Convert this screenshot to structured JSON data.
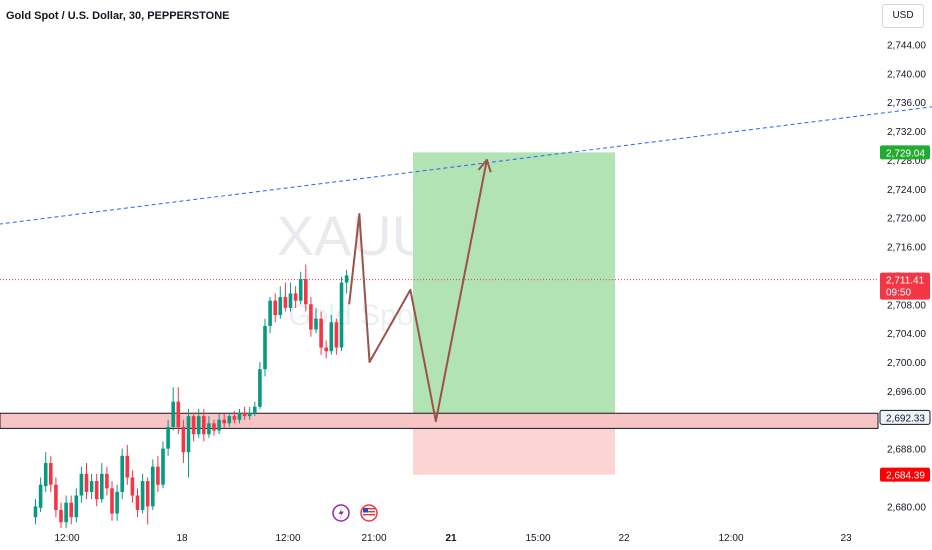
{
  "header": {
    "title": "Gold Spot / U.S. Dollar, 30, PEPPERSTONE",
    "currency": "USD"
  },
  "watermark": {
    "symbol": "XAUUSD, 30",
    "name": "Gold Spot / U.S. Dollar"
  },
  "colors": {
    "up": "#089981",
    "down": "#f23645",
    "long_target": "#b2e3b4",
    "long_stop": "#fdd4d4",
    "arrow": "#9b5248",
    "trendline": "#2962ff",
    "target_label": "#22ab30"
  },
  "chart_data": {
    "type": "candlestick",
    "title": "Gold Spot / U.S. Dollar, 30, PEPPERSTONE",
    "ylim": [
      2677,
      2746
    ],
    "y_ticks": [
      "2,680.00",
      "2,684.00",
      "2,688.00",
      "2,692.00",
      "2,696.00",
      "2,700.00",
      "2,704.00",
      "2,708.00",
      "2,712.00",
      "2,716.00",
      "2,720.00",
      "2,724.00",
      "2,728.00",
      "2,732.00",
      "2,736.00",
      "2,740.00",
      "2,744.00"
    ],
    "x_ticks": [
      "12:00",
      "18",
      "12:00",
      "21:00",
      "21",
      "15:00",
      "22",
      "12:00",
      "23"
    ],
    "candles": [
      [
        2678.5,
        2680.0,
        2677.5,
        2681.0
      ],
      [
        2679.8,
        2683.0,
        2679.2,
        2684.0
      ],
      [
        2682.8,
        2686.0,
        2682.0,
        2687.5
      ],
      [
        2686.0,
        2683.0,
        2682.0,
        2687.0
      ],
      [
        2683.0,
        2679.5,
        2678.5,
        2684.0
      ],
      [
        2679.5,
        2677.8,
        2677.0,
        2680.5
      ],
      [
        2677.8,
        2680.5,
        2677.0,
        2681.5
      ],
      [
        2680.5,
        2678.5,
        2677.5,
        2681.5
      ],
      [
        2678.5,
        2681.5,
        2677.8,
        2682.5
      ],
      [
        2681.5,
        2684.5,
        2680.5,
        2685.5
      ],
      [
        2684.5,
        2682.0,
        2681.0,
        2686.0
      ],
      [
        2682.0,
        2683.5,
        2681.0,
        2684.5
      ],
      [
        2683.5,
        2681.0,
        2680.0,
        2684.5
      ],
      [
        2681.0,
        2684.5,
        2680.5,
        2686.0
      ],
      [
        2684.5,
        2682.5,
        2681.5,
        2685.5
      ],
      [
        2682.5,
        2679.0,
        2678.0,
        2683.5
      ],
      [
        2679.0,
        2682.0,
        2678.0,
        2683.0
      ],
      [
        2682.0,
        2687.0,
        2681.0,
        2688.0
      ],
      [
        2687.0,
        2684.0,
        2683.0,
        2688.5
      ],
      [
        2684.0,
        2681.5,
        2680.5,
        2685.0
      ],
      [
        2681.5,
        2679.5,
        2678.5,
        2682.5
      ],
      [
        2679.5,
        2683.5,
        2679.0,
        2684.5
      ],
      [
        2683.5,
        2680.0,
        2677.5,
        2684.0
      ],
      [
        2680.0,
        2685.5,
        2679.5,
        2686.5
      ],
      [
        2685.5,
        2683.0,
        2682.0,
        2687.0
      ],
      [
        2683.0,
        2688.0,
        2682.5,
        2689.0
      ],
      [
        2688.0,
        2691.0,
        2687.0,
        2692.0
      ],
      [
        2691.0,
        2694.5,
        2690.5,
        2696.5
      ],
      [
        2694.5,
        2691.0,
        2690.0,
        2696.5
      ],
      [
        2691.0,
        2687.5,
        2686.0,
        2692.0
      ],
      [
        2687.5,
        2692.5,
        2684.0,
        2693.5
      ],
      [
        2692.5,
        2690.0,
        2689.0,
        2693.0
      ],
      [
        2690.0,
        2692.5,
        2689.5,
        2693.5
      ],
      [
        2692.5,
        2690.0,
        2689.0,
        2693.5
      ],
      [
        2690.0,
        2691.5,
        2689.5,
        2692.5
      ],
      [
        2691.5,
        2690.5,
        2689.8,
        2692.0
      ],
      [
        2690.5,
        2692.0,
        2690.0,
        2692.8
      ],
      [
        2692.0,
        2691.5,
        2690.8,
        2692.8
      ],
      [
        2691.5,
        2692.5,
        2691.0,
        2693.0
      ],
      [
        2692.5,
        2692.0,
        2691.5,
        2693.2
      ],
      [
        2692.0,
        2693.0,
        2691.5,
        2693.5
      ],
      [
        2693.0,
        2692.5,
        2692.0,
        2693.8
      ],
      [
        2692.5,
        2693.0,
        2692.0,
        2693.8
      ],
      [
        2693.0,
        2693.8,
        2692.5,
        2694.5
      ],
      [
        2693.8,
        2699.0,
        2693.5,
        2700.0
      ],
      [
        2699.0,
        2705.0,
        2698.0,
        2706.0
      ],
      [
        2705.0,
        2708.5,
        2704.0,
        2709.0
      ],
      [
        2708.5,
        2706.5,
        2705.5,
        2709.5
      ],
      [
        2706.5,
        2709.0,
        2706.0,
        2710.5
      ],
      [
        2709.0,
        2707.5,
        2707.0,
        2711.0
      ],
      [
        2707.5,
        2709.5,
        2707.0,
        2711.0
      ],
      [
        2709.5,
        2708.5,
        2707.5,
        2710.5
      ],
      [
        2708.5,
        2711.5,
        2708.0,
        2712.5
      ],
      [
        2711.5,
        2708.0,
        2707.0,
        2713.5
      ],
      [
        2708.0,
        2704.5,
        2703.5,
        2709.0
      ],
      [
        2704.5,
        2706.0,
        2704.0,
        2707.5
      ],
      [
        2706.0,
        2702.0,
        2701.0,
        2707.0
      ],
      [
        2702.0,
        2701.5,
        2700.5,
        2703.0
      ],
      [
        2701.5,
        2705.5,
        2701.0,
        2706.5
      ],
      [
        2705.5,
        2702.0,
        2701.0,
        2706.0
      ],
      [
        2702.0,
        2711.0,
        2701.5,
        2711.8
      ],
      [
        2711.0,
        2712.0,
        2709.5,
        2712.8
      ]
    ],
    "trendline": {
      "style": "dashed",
      "from": [
        -14,
        2718.5
      ],
      "to": [
        200,
        2737.5
      ]
    },
    "position": {
      "type": "long",
      "entry": 2692.33,
      "target": 2729.04,
      "stop": 2684.39
    },
    "projection": [
      [
        61.5,
        2708.0
      ],
      [
        63.5,
        2720.5
      ],
      [
        65.5,
        2700.0
      ],
      [
        73.5,
        2710.0
      ],
      [
        78.5,
        2691.8
      ],
      [
        88.5,
        2728.0
      ]
    ],
    "price_labels": {
      "target": "2,729.04",
      "last": "2,711.41",
      "countdown": "09:50",
      "entry": "2,692.33",
      "stop": "2,684.39"
    },
    "levels": {
      "last_price": 2711.41,
      "entry_band": [
        2690.8,
        2692.9
      ]
    }
  }
}
